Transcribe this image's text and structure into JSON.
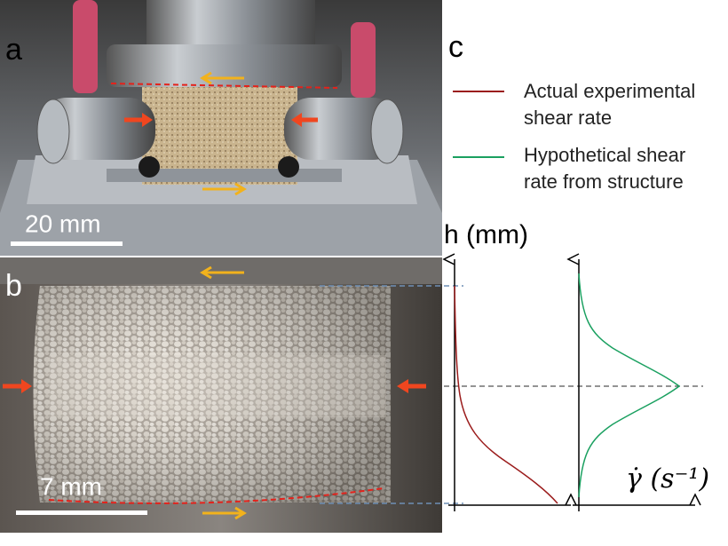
{
  "panels": {
    "a": {
      "label": "a",
      "scale_bar": "20 mm"
    },
    "b": {
      "label": "b",
      "scale_bar": "7 mm"
    },
    "c": {
      "label": "c",
      "legend": [
        {
          "lines": [
            "Actual experimental",
            "shear rate"
          ]
        },
        {
          "lines": [
            "Hypothetical shear",
            "rate from structure"
          ]
        }
      ],
      "y_axis_label": "h (mm)",
      "x_axis_label": "γ̇ (s⁻¹)"
    }
  }
}
